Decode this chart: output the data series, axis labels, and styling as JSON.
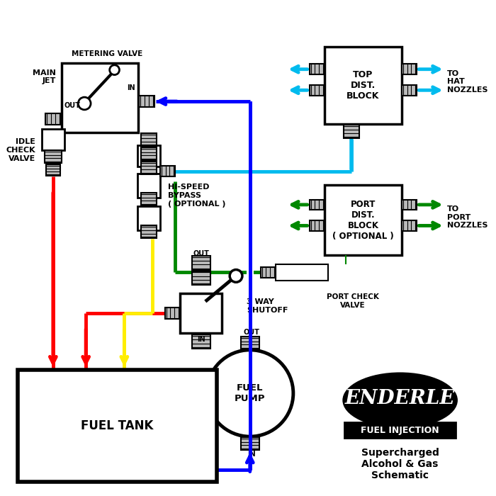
{
  "bg": "#ffffff",
  "blue": "#0000ff",
  "cyan": "#00bbee",
  "green": "#008800",
  "red": "#ff0000",
  "yellow": "#ffee00",
  "gray": "#999999",
  "lgray": "#cccccc",
  "black": "#000000",
  "lw": 3.5,
  "texts": {
    "metering_valve": "METERING VALVE",
    "main_jet": "MAIN\nJET",
    "idle_check": "IDLE\nCHECK\nVALVE",
    "hi_speed": "HI-SPEED\nBYPASS\n( OPTIONAL )",
    "top_dist": "TOP\nDIST.\nBLOCK",
    "port_dist": "PORT\nDIST.\nBLOCK\n( OPTIONAL )",
    "port_check": "PORT CHECK\nVALVE",
    "three_way": "3 WAY\nSHUTOFF",
    "fuel_pump": "FUEL\nPUMP",
    "fuel_tank": "FUEL TANK",
    "to_hat": "TO\nHAT\nNOZZLES",
    "to_port": "TO\nPORT\nNOZZLES",
    "enderle": "ENDERLE",
    "fuel_inj": "FUEL INJECTION",
    "schematic": "Supercharged\nAlcohol & Gas\nSchematic"
  }
}
